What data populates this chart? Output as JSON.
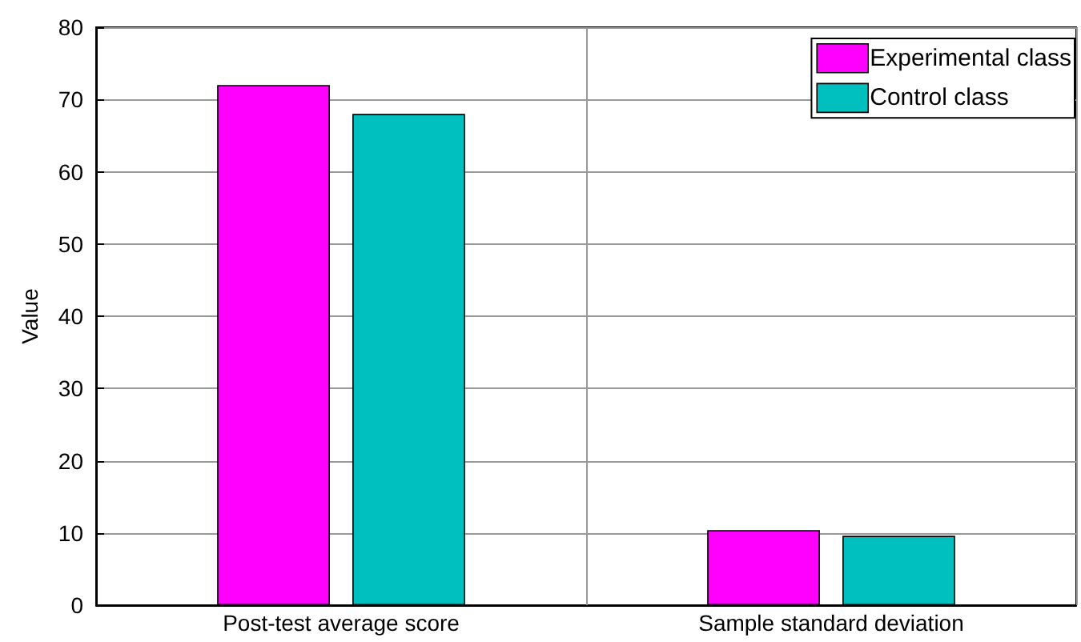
{
  "chart_data": {
    "type": "bar",
    "ylabel": "Value",
    "categories": [
      "Post-test average score",
      "Sample standard deviation"
    ],
    "series": [
      {
        "name": "Experimental class",
        "color": "#ff00ff",
        "values": [
          72,
          10.4
        ]
      },
      {
        "name": "Control class",
        "color": "#00bfbf",
        "values": [
          68,
          9.6
        ]
      }
    ],
    "ylim": [
      0,
      80
    ],
    "yticks": [
      0,
      10,
      20,
      30,
      40,
      50,
      60,
      70,
      80
    ],
    "grid": true,
    "legend": "top right"
  }
}
